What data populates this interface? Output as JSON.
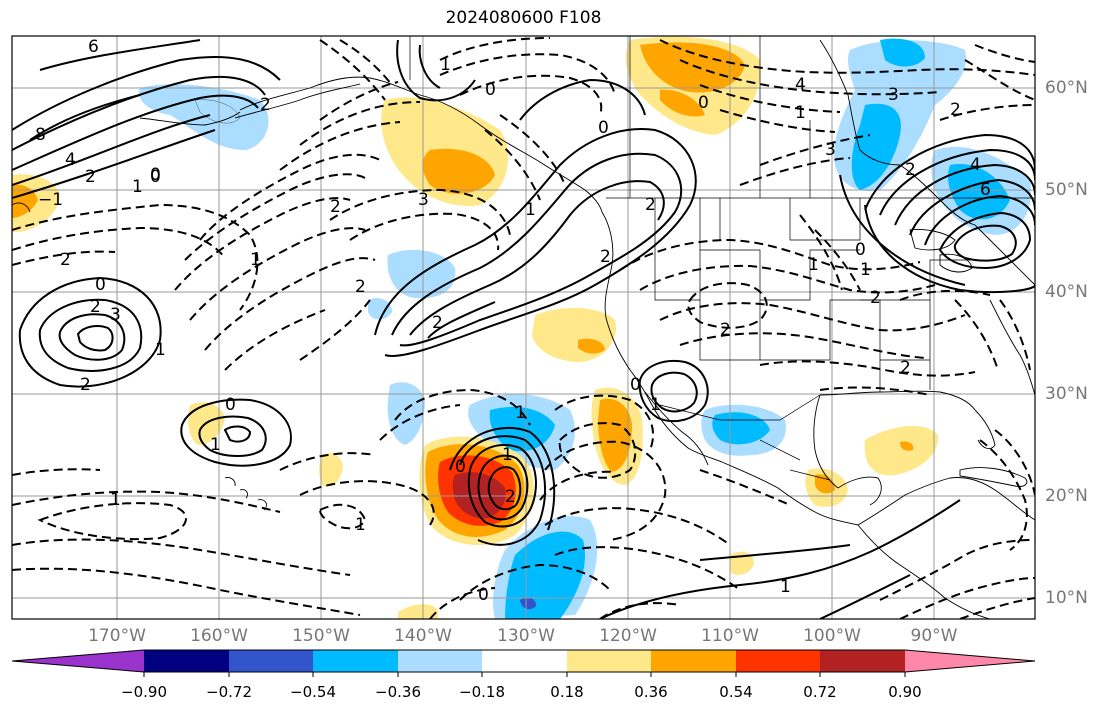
{
  "title": "2024080600 F108",
  "lon_labels": [
    "170°W",
    "160°W",
    "150°W",
    "140°W",
    "130°W",
    "120°W",
    "110°W",
    "100°W",
    "90°W"
  ],
  "lat_labels": [
    "60°N",
    "50°N",
    "40°N",
    "30°N",
    "20°N",
    "10°N"
  ],
  "colorbar": {
    "colors": [
      "#9933cc",
      "#000080",
      "#3355cc",
      "#00bbff",
      "#aaddff",
      "#ffffff",
      "#ffe88a",
      "#ffa500",
      "#ff3300",
      "#b22222",
      "#ff88aa"
    ],
    "ticks": [
      "−0.90",
      "−0.72",
      "−0.54",
      "−0.36",
      "−0.18",
      "0.18",
      "0.36",
      "0.54",
      "0.72",
      "0.90"
    ]
  },
  "contour_labels": [
    "6",
    "8",
    "4",
    "2",
    "1",
    "0",
    "−1",
    "2",
    "3",
    "2",
    "0",
    "2",
    "3",
    "1",
    "1",
    "0",
    "1",
    "2",
    "2",
    "0",
    "1",
    "2",
    "1",
    "2",
    "0",
    "1",
    "2",
    "1",
    "2",
    "0",
    "0",
    "1",
    "2",
    "1",
    "0",
    "1",
    "3",
    "2",
    "2",
    "4",
    "6",
    "3",
    "2",
    "2",
    "1",
    "0",
    "0",
    "1",
    "0",
    "1",
    "2",
    "1",
    "4"
  ]
}
